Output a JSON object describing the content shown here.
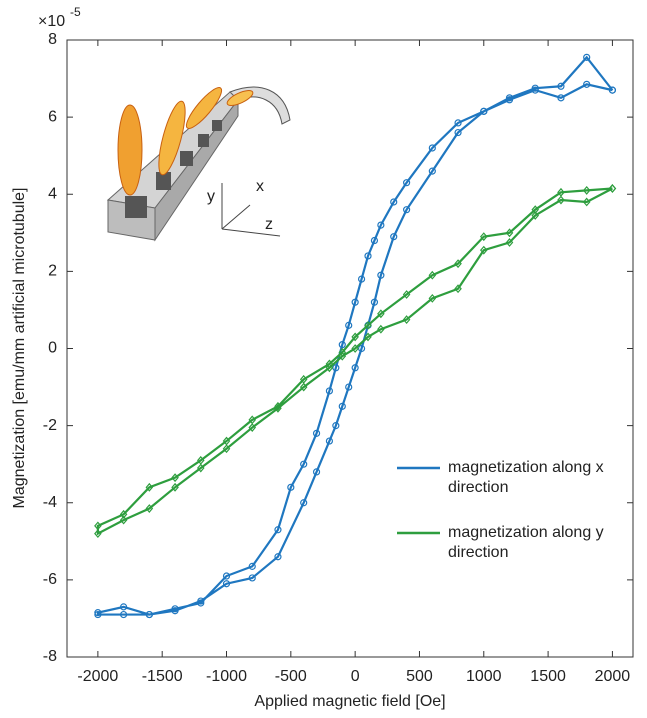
{
  "chart_data": {
    "type": "line",
    "y_exponent": {
      "base": "×10",
      "power": "-5"
    },
    "xlabel": "Applied magnetic field [Oe]",
    "ylabel": "Magnetization [emu/mm artificial microtubule]",
    "inset_labels": {
      "y": "y",
      "x": "x",
      "z": "z"
    },
    "xlim": [
      -2240,
      2160
    ],
    "ylim": [
      -8,
      8
    ],
    "xticks": [
      -2000,
      -1500,
      -1000,
      -500,
      0,
      500,
      1000,
      1500,
      2000
    ],
    "yticks": [
      -8,
      -6,
      -4,
      -2,
      0,
      2,
      4,
      6,
      8
    ],
    "legend": "lower right",
    "series": [
      {
        "name": "magnetization along x direction",
        "color": "#1f77c0",
        "marker": "circle",
        "x": [
          2000,
          1800,
          1600,
          1400,
          1200,
          1000,
          800,
          600,
          400,
          300,
          200,
          150,
          100,
          50,
          0,
          -50,
          -100,
          -150,
          -200,
          -300,
          -400,
          -500,
          -600,
          -800,
          -1000,
          -1200,
          -1400,
          -1600,
          -1800,
          -2000,
          -2000,
          -1800,
          -1600,
          -1400,
          -1200,
          -1000,
          -800,
          -600,
          -400,
          -300,
          -200,
          -150,
          -100,
          -50,
          0,
          50,
          100,
          150,
          200,
          300,
          400,
          600,
          800,
          1000,
          1200,
          1400,
          1600,
          1800,
          2000
        ],
        "values": [
          6.7,
          7.55,
          6.8,
          6.75,
          6.5,
          6.15,
          5.85,
          5.2,
          4.3,
          3.8,
          3.2,
          2.8,
          2.4,
          1.8,
          1.2,
          0.6,
          0.1,
          -0.5,
          -1.1,
          -2.2,
          -3.0,
          -3.6,
          -4.7,
          -5.65,
          -5.9,
          -6.6,
          -6.75,
          -6.9,
          -6.7,
          -6.85,
          -6.9,
          -6.9,
          -6.9,
          -6.8,
          -6.55,
          -6.1,
          -5.95,
          -5.4,
          -4.0,
          -3.2,
          -2.4,
          -2.0,
          -1.5,
          -1.0,
          -0.5,
          0.0,
          0.6,
          1.2,
          1.9,
          2.9,
          3.6,
          4.6,
          5.6,
          6.15,
          6.45,
          6.7,
          6.5,
          6.85,
          6.7
        ]
      },
      {
        "name": "magnetization along y direction",
        "color": "#2e9e3e",
        "marker": "diamond",
        "x": [
          2000,
          1800,
          1600,
          1400,
          1200,
          1000,
          800,
          600,
          400,
          200,
          100,
          0,
          -100,
          -200,
          -400,
          -600,
          -800,
          -1000,
          -1200,
          -1400,
          -1600,
          -1800,
          -2000,
          -2000,
          -1800,
          -1600,
          -1400,
          -1200,
          -1000,
          -800,
          -600,
          -400,
          -200,
          -100,
          0,
          100,
          200,
          400,
          600,
          800,
          1000,
          1200,
          1400,
          1600,
          1800,
          2000
        ],
        "values": [
          4.15,
          4.1,
          4.05,
          3.6,
          3.0,
          2.9,
          2.2,
          1.9,
          1.4,
          0.9,
          0.6,
          0.3,
          -0.1,
          -0.4,
          -0.8,
          -1.5,
          -1.85,
          -2.4,
          -2.9,
          -3.35,
          -3.6,
          -4.3,
          -4.6,
          -4.8,
          -4.45,
          -4.15,
          -3.6,
          -3.1,
          -2.6,
          -2.05,
          -1.55,
          -1.0,
          -0.5,
          -0.2,
          0.0,
          0.3,
          0.5,
          0.75,
          1.3,
          1.55,
          2.55,
          2.75,
          3.45,
          3.85,
          3.8,
          4.15
        ]
      }
    ]
  }
}
